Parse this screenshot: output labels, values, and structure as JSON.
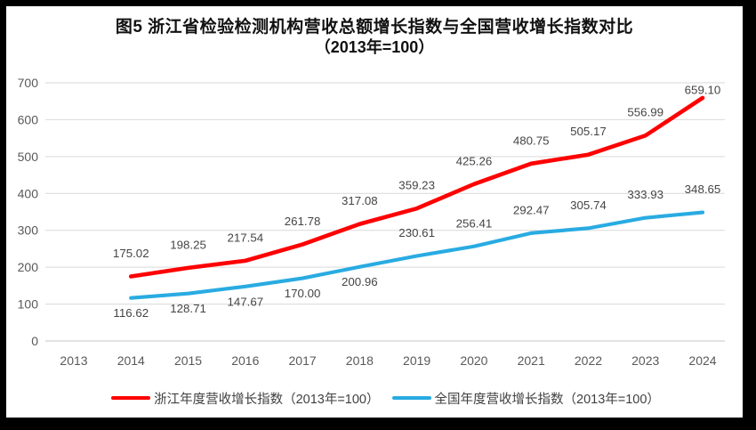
{
  "figure": {
    "title_line1": "图5  浙江省检验检测机构营收总额增长指数与全国营收增长指数对比",
    "title_line2": "（2013年=100）"
  },
  "chart_data": {
    "type": "line",
    "title": "图5  浙江省检验检测机构营收总额增长指数与全国营收增长指数对比",
    "subtitle": "（2013年=100）",
    "x_categories": [
      "2013",
      "2014",
      "2015",
      "2016",
      "2017",
      "2018",
      "2019",
      "2020",
      "2021",
      "2022",
      "2023",
      "2024"
    ],
    "ylim": [
      0,
      700
    ],
    "y_ticks": [
      0,
      100,
      200,
      300,
      400,
      500,
      600,
      700
    ],
    "grid": "horizontal",
    "legend_position": "bottom",
    "colors": {
      "grid": "#D9D9D9",
      "baseline": "#C6C6C6",
      "axis_text": "#595959",
      "data_label": "#444444"
    },
    "series": [
      {
        "name": "浙江年度营收增长指数（2013年=100）",
        "color": "#FF0000",
        "start_category": "2014",
        "values": [
          175.02,
          198.25,
          217.54,
          261.78,
          317.08,
          359.23,
          425.26,
          480.75,
          505.17,
          556.99,
          659.1
        ],
        "label_placements": [
          "above",
          "above",
          "above",
          "above",
          "above",
          "above",
          "above",
          "above",
          "above",
          "above",
          "above"
        ]
      },
      {
        "name": "全国年度营收增长指数（2013年=100）",
        "color": "#29ABE2",
        "start_category": "2014",
        "values": [
          116.62,
          128.71,
          147.67,
          170.0,
          200.96,
          230.61,
          256.41,
          292.47,
          305.74,
          333.93,
          348.65
        ],
        "label_placements": [
          "below",
          "below",
          "below",
          "below",
          "below",
          "above",
          "above",
          "above",
          "above",
          "above",
          "above"
        ]
      }
    ]
  }
}
